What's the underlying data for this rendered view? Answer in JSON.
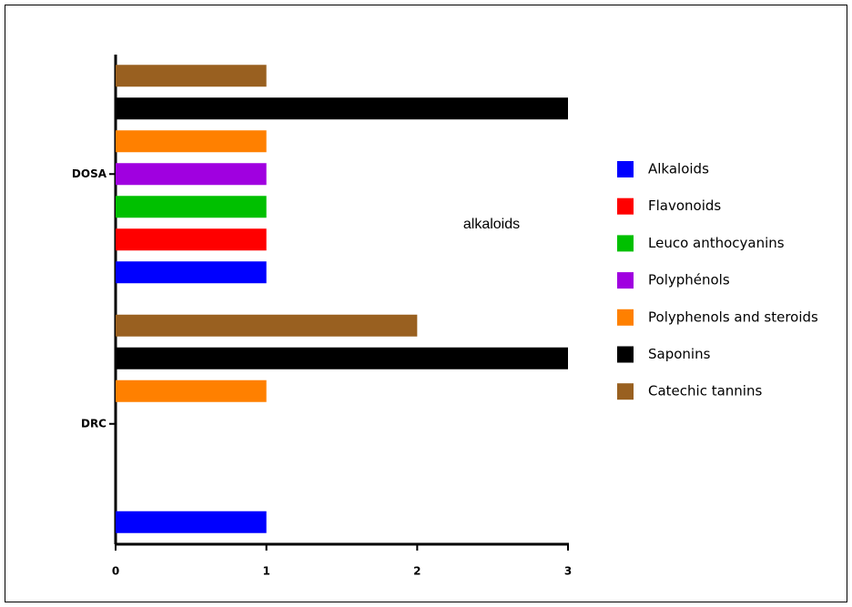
{
  "chart_data": {
    "type": "bar",
    "orientation": "horizontal",
    "categories": [
      "DRC",
      "DOSA"
    ],
    "series": [
      {
        "name": "Alkaloids",
        "color": "#0000ff",
        "values": [
          1,
          1
        ]
      },
      {
        "name": "Flavonoids",
        "color": "#ff0000",
        "values": [
          0,
          1
        ]
      },
      {
        "name": "Leuco anthocyanins",
        "color": "#00c000",
        "values": [
          0,
          1
        ]
      },
      {
        "name": "Polyphénols",
        "color": "#a000e0",
        "values": [
          0,
          1
        ]
      },
      {
        "name": "Polyphenols and steroids",
        "color": "#ff8000",
        "values": [
          1,
          1
        ]
      },
      {
        "name": "Saponins",
        "color": "#000000",
        "values": [
          3,
          3
        ]
      },
      {
        "name": "Catechic tannins",
        "color": "#996020",
        "values": [
          2,
          1
        ]
      }
    ],
    "xlim": [
      0,
      3
    ],
    "xticks": [
      0,
      1,
      2,
      3
    ],
    "annotation": "alkaloids",
    "legend": "right"
  }
}
